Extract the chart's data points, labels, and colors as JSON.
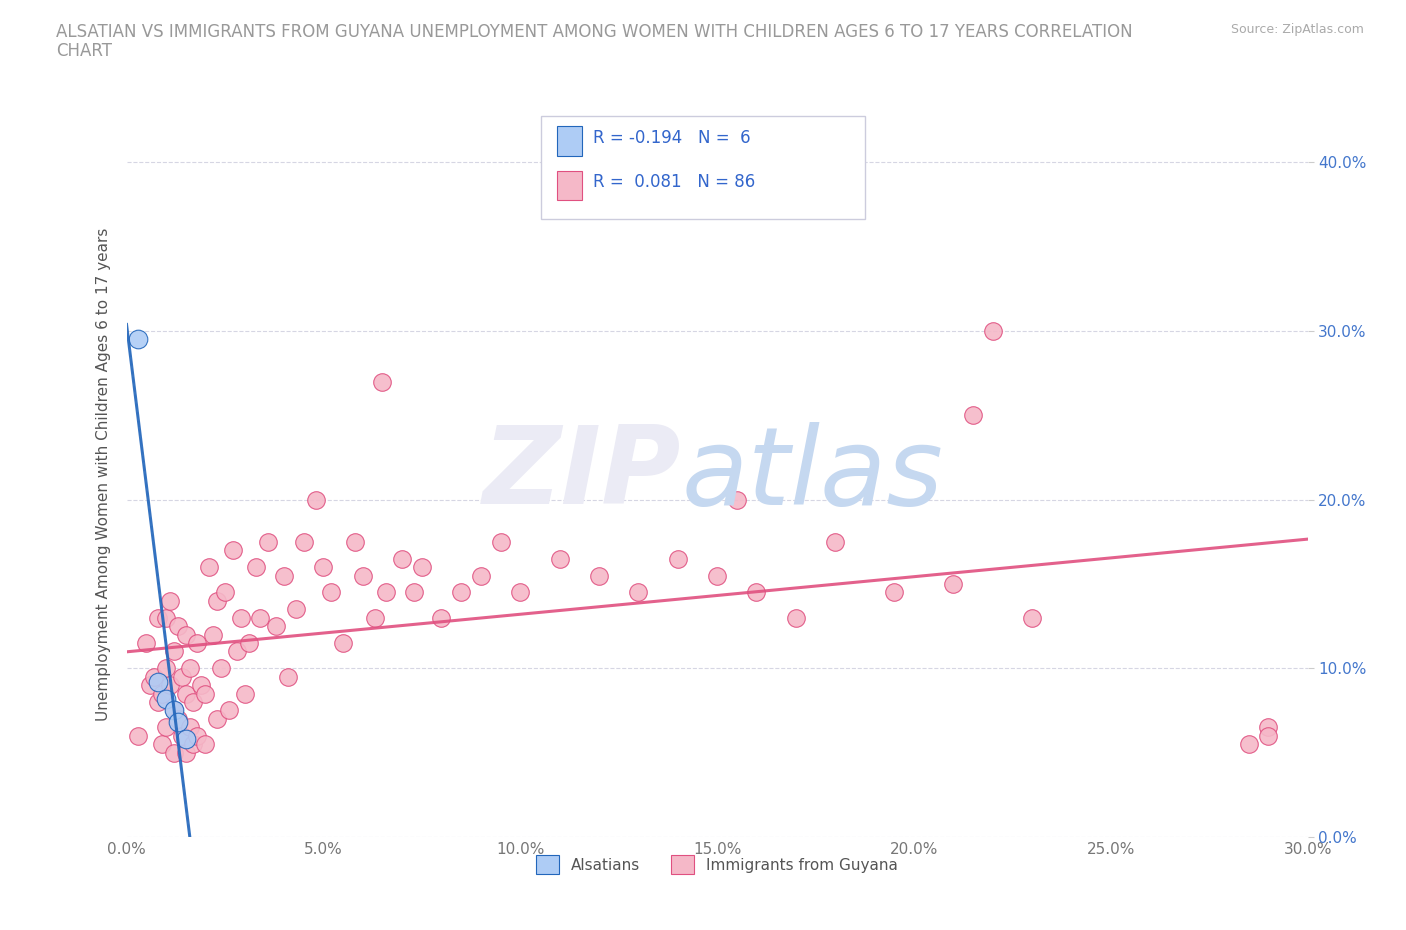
{
  "title": "ALSATIAN VS IMMIGRANTS FROM GUYANA UNEMPLOYMENT AMONG WOMEN WITH CHILDREN AGES 6 TO 17 YEARS CORRELATION\nCHART",
  "source": "Source: ZipAtlas.com",
  "ylabel": "Unemployment Among Women with Children Ages 6 to 17 years",
  "xlim": [
    0.0,
    0.3
  ],
  "ylim": [
    0.0,
    0.43
  ],
  "xticks": [
    0.0,
    0.05,
    0.1,
    0.15,
    0.2,
    0.25,
    0.3
  ],
  "xtick_labels": [
    "0.0%",
    "5.0%",
    "10.0%",
    "15.0%",
    "20.0%",
    "25.0%",
    "30.0%"
  ],
  "yticks": [
    0.0,
    0.1,
    0.2,
    0.3,
    0.4
  ],
  "ytick_labels": [
    "0.0%",
    "10.0%",
    "20.0%",
    "30.0%",
    "40.0%"
  ],
  "background_color": "#ffffff",
  "alsatian_color": "#aeccf5",
  "guyana_color": "#f5b8c8",
  "alsatian_R": -0.194,
  "alsatian_N": 6,
  "guyana_R": 0.081,
  "guyana_N": 86,
  "alsatian_points_x": [
    0.003,
    0.008,
    0.01,
    0.012,
    0.013,
    0.015
  ],
  "alsatian_points_y": [
    0.295,
    0.092,
    0.082,
    0.075,
    0.068,
    0.058
  ],
  "guyana_points_x": [
    0.003,
    0.005,
    0.006,
    0.007,
    0.008,
    0.008,
    0.009,
    0.009,
    0.01,
    0.01,
    0.01,
    0.011,
    0.011,
    0.012,
    0.012,
    0.012,
    0.013,
    0.013,
    0.014,
    0.014,
    0.015,
    0.015,
    0.015,
    0.016,
    0.016,
    0.017,
    0.017,
    0.018,
    0.018,
    0.019,
    0.02,
    0.02,
    0.021,
    0.022,
    0.023,
    0.023,
    0.024,
    0.025,
    0.026,
    0.027,
    0.028,
    0.029,
    0.03,
    0.031,
    0.033,
    0.034,
    0.036,
    0.038,
    0.04,
    0.041,
    0.043,
    0.045,
    0.048,
    0.05,
    0.052,
    0.055,
    0.058,
    0.06,
    0.063,
    0.066,
    0.07,
    0.073,
    0.075,
    0.08,
    0.085,
    0.09,
    0.095,
    0.1,
    0.11,
    0.12,
    0.13,
    0.14,
    0.15,
    0.16,
    0.17,
    0.18,
    0.195,
    0.21,
    0.22,
    0.23,
    0.155,
    0.065,
    0.29,
    0.285,
    0.215,
    0.29
  ],
  "guyana_points_y": [
    0.06,
    0.115,
    0.09,
    0.095,
    0.08,
    0.13,
    0.055,
    0.085,
    0.065,
    0.1,
    0.13,
    0.09,
    0.14,
    0.05,
    0.075,
    0.11,
    0.07,
    0.125,
    0.06,
    0.095,
    0.05,
    0.085,
    0.12,
    0.065,
    0.1,
    0.055,
    0.08,
    0.115,
    0.06,
    0.09,
    0.055,
    0.085,
    0.16,
    0.12,
    0.07,
    0.14,
    0.1,
    0.145,
    0.075,
    0.17,
    0.11,
    0.13,
    0.085,
    0.115,
    0.16,
    0.13,
    0.175,
    0.125,
    0.155,
    0.095,
    0.135,
    0.175,
    0.2,
    0.16,
    0.145,
    0.115,
    0.175,
    0.155,
    0.13,
    0.145,
    0.165,
    0.145,
    0.16,
    0.13,
    0.145,
    0.155,
    0.175,
    0.145,
    0.165,
    0.155,
    0.145,
    0.165,
    0.155,
    0.145,
    0.13,
    0.175,
    0.145,
    0.15,
    0.3,
    0.13,
    0.2,
    0.27,
    0.065,
    0.055,
    0.25,
    0.06
  ],
  "grid_color": "#ccccdd",
  "trend_blue_color": "#2266bb",
  "trend_pink_color": "#e05080",
  "trend_lightblue_color": "#88aadd",
  "legend_R_color": "#3366cc",
  "axis_tick_color": "#888888"
}
